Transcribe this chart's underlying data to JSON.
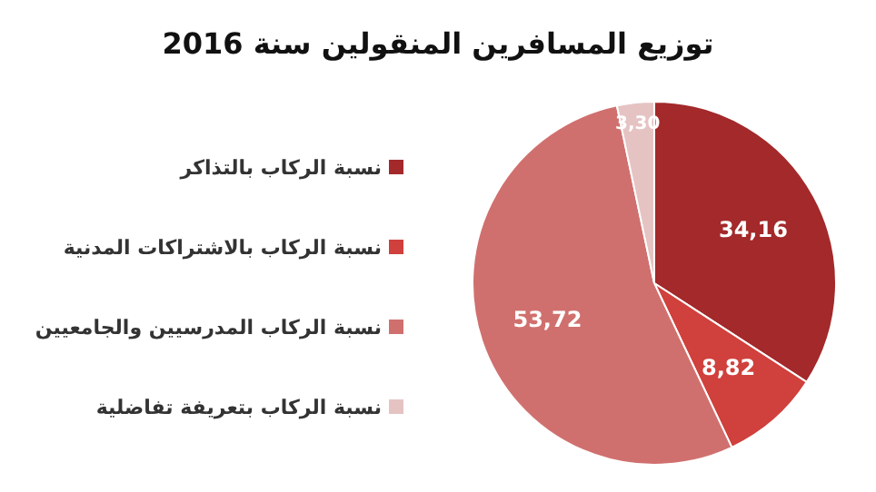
{
  "chart_data": {
    "type": "pie",
    "title": "توزيع المسافرين المنقولين سنة 2016",
    "categories": [
      "نسبة الركاب بالتذاكر",
      "نسبة الركاب بالاشتراكات المدنية",
      "نسبة الركاب المدرسيين والجامعيين",
      "نسبة الركاب بتعريفة تفاضلية"
    ],
    "values": [
      34.16,
      8.82,
      53.72,
      3.3
    ],
    "value_labels": [
      "34,16",
      "8,82",
      "53,72",
      "3,30"
    ],
    "colors": [
      "#a3292a",
      "#d0403c",
      "#d0706e",
      "#e6c3c3"
    ],
    "legend": "left"
  }
}
